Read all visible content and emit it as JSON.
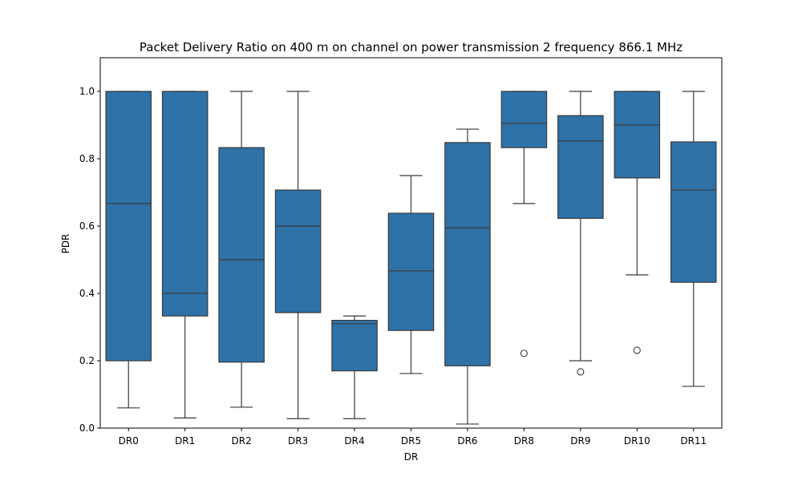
{
  "chart_data": {
    "type": "box",
    "title": "Packet Delivery Ratio on 400 m on channel on power transmission 2 frequency 866.1 MHz",
    "xlabel": "DR",
    "ylabel": "PDR",
    "ylim": [
      0,
      1.1
    ],
    "yticks": [
      "0.0",
      "0.2",
      "0.4",
      "0.6",
      "0.8",
      "1.0"
    ],
    "grid": false,
    "box_color": "#2e72a8",
    "edge_color": "#3a3a3a",
    "categories": [
      "DR0",
      "DR1",
      "DR2",
      "DR3",
      "DR4",
      "DR5",
      "DR6",
      "DR8",
      "DR9",
      "DR10",
      "DR11"
    ],
    "boxes": [
      {
        "category": "DR0",
        "whisker_low": 0.06,
        "q1": 0.2,
        "median": 0.667,
        "q3": 1.0,
        "whisker_high": 1.0,
        "outliers": []
      },
      {
        "category": "DR1",
        "whisker_low": 0.03,
        "q1": 0.333,
        "median": 0.4,
        "q3": 1.0,
        "whisker_high": 1.0,
        "outliers": []
      },
      {
        "category": "DR2",
        "whisker_low": 0.062,
        "q1": 0.196,
        "median": 0.5,
        "q3": 0.833,
        "whisker_high": 1.0,
        "outliers": []
      },
      {
        "category": "DR3",
        "whisker_low": 0.028,
        "q1": 0.343,
        "median": 0.6,
        "q3": 0.707,
        "whisker_high": 1.0,
        "outliers": []
      },
      {
        "category": "DR4",
        "whisker_low": 0.028,
        "q1": 0.17,
        "median": 0.31,
        "q3": 0.32,
        "whisker_high": 0.333,
        "outliers": []
      },
      {
        "category": "DR5",
        "whisker_low": 0.162,
        "q1": 0.29,
        "median": 0.467,
        "q3": 0.638,
        "whisker_high": 0.75,
        "outliers": []
      },
      {
        "category": "DR6",
        "whisker_low": 0.012,
        "q1": 0.185,
        "median": 0.595,
        "q3": 0.848,
        "whisker_high": 0.888,
        "outliers": []
      },
      {
        "category": "DR8",
        "whisker_low": 0.667,
        "q1": 0.833,
        "median": 0.905,
        "q3": 1.0,
        "whisker_high": 1.0,
        "outliers": [
          0.222
        ]
      },
      {
        "category": "DR9",
        "whisker_low": 0.2,
        "q1": 0.623,
        "median": 0.853,
        "q3": 0.928,
        "whisker_high": 1.0,
        "outliers": [
          0.167
        ]
      },
      {
        "category": "DR10",
        "whisker_low": 0.455,
        "q1": 0.743,
        "median": 0.9,
        "q3": 1.0,
        "whisker_high": 1.0,
        "outliers": [
          0.231
        ]
      },
      {
        "category": "DR11",
        "whisker_low": 0.124,
        "q1": 0.433,
        "median": 0.707,
        "q3": 0.85,
        "whisker_high": 1.0,
        "outliers": []
      }
    ]
  }
}
